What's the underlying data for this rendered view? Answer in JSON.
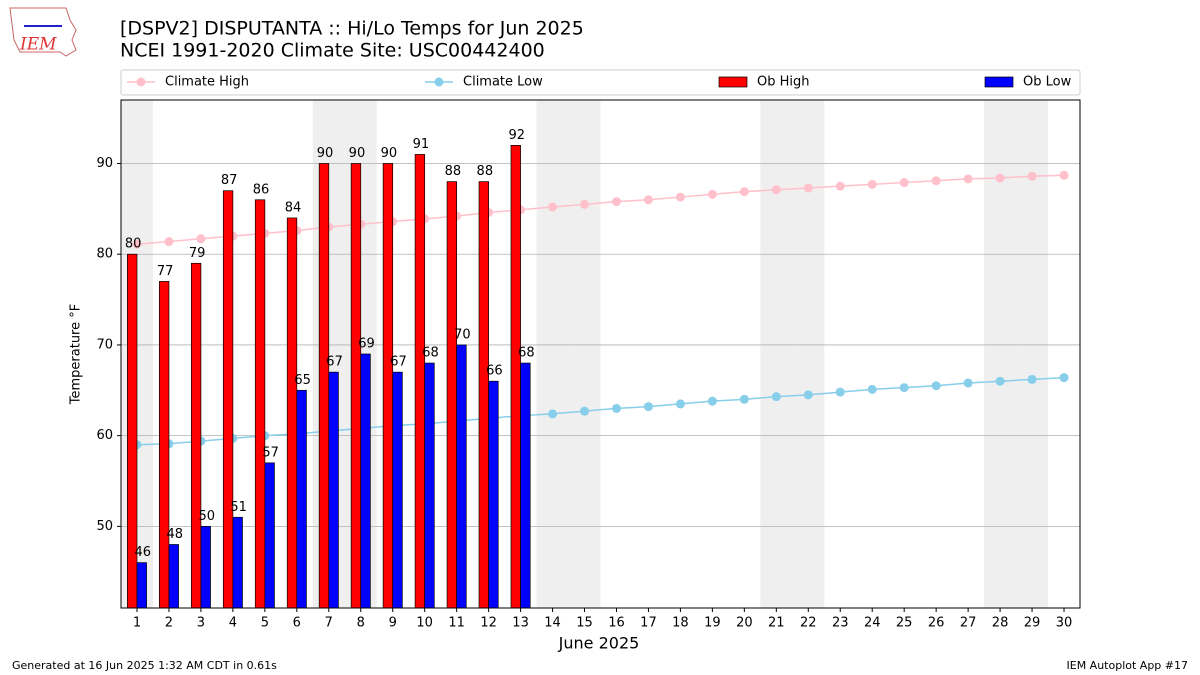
{
  "chart_data": {
    "type": "bar",
    "title": "[DSPV2] DISPUTANTA :: Hi/Lo Temps for Jun 2025",
    "subtitle": "NCEI 1991-2020 Climate Site: USC00442400",
    "xlabel": "June 2025",
    "ylabel": "Temperature °F",
    "x": [
      1,
      2,
      3,
      4,
      5,
      6,
      7,
      8,
      9,
      10,
      11,
      12,
      13,
      14,
      15,
      16,
      17,
      18,
      19,
      20,
      21,
      22,
      23,
      24,
      25,
      26,
      27,
      28,
      29,
      30
    ],
    "series": [
      {
        "name": "Climate High",
        "type": "line",
        "color": "#ffc0cb",
        "values": [
          81.1,
          81.4,
          81.7,
          82.0,
          82.3,
          82.6,
          83.0,
          83.3,
          83.6,
          83.9,
          84.2,
          84.6,
          84.9,
          85.2,
          85.5,
          85.8,
          86.0,
          86.3,
          86.6,
          86.9,
          87.1,
          87.3,
          87.5,
          87.7,
          87.9,
          88.1,
          88.3,
          88.4,
          88.6,
          88.7
        ]
      },
      {
        "name": "Climate Low",
        "type": "line",
        "color": "#87ceeb",
        "values": [
          59.0,
          59.1,
          59.4,
          59.7,
          60.0,
          60.2,
          60.5,
          60.8,
          61.1,
          61.3,
          61.6,
          61.9,
          62.2,
          62.4,
          62.7,
          63.0,
          63.2,
          63.5,
          63.8,
          64.0,
          64.3,
          64.5,
          64.8,
          65.1,
          65.3,
          65.5,
          65.8,
          66.0,
          66.2,
          66.4
        ]
      },
      {
        "name": "Ob High",
        "type": "bar",
        "color": "#ff0000",
        "values": [
          80,
          77,
          79,
          87,
          86,
          84,
          90,
          90,
          90,
          91,
          88,
          88,
          92,
          null,
          null,
          null,
          null,
          null,
          null,
          null,
          null,
          null,
          null,
          null,
          null,
          null,
          null,
          null,
          null,
          null
        ]
      },
      {
        "name": "Ob Low",
        "type": "bar",
        "color": "#0000ff",
        "values": [
          46,
          48,
          50,
          51,
          57,
          65,
          67,
          69,
          67,
          68,
          70,
          66,
          68,
          null,
          null,
          null,
          null,
          null,
          null,
          null,
          null,
          null,
          null,
          null,
          null,
          null,
          null,
          null,
          null,
          null
        ]
      }
    ],
    "weekend_days": [
      1,
      7,
      8,
      14,
      15,
      21,
      22,
      28,
      29
    ],
    "xlim": [
      0.5,
      30.5
    ],
    "ylim": [
      41,
      97
    ],
    "xticks": [
      1,
      2,
      3,
      4,
      5,
      6,
      7,
      8,
      9,
      10,
      11,
      12,
      13,
      14,
      15,
      16,
      17,
      18,
      19,
      20,
      21,
      22,
      23,
      24,
      25,
      26,
      27,
      28,
      29,
      30
    ],
    "yticks": [
      50,
      60,
      70,
      80,
      90
    ],
    "grid": true,
    "legend": "top"
  },
  "logo_text": "IEM",
  "footer": {
    "left": "Generated at 16 Jun 2025 1:32 AM CDT in 0.61s",
    "right": "IEM Autoplot App #17"
  }
}
